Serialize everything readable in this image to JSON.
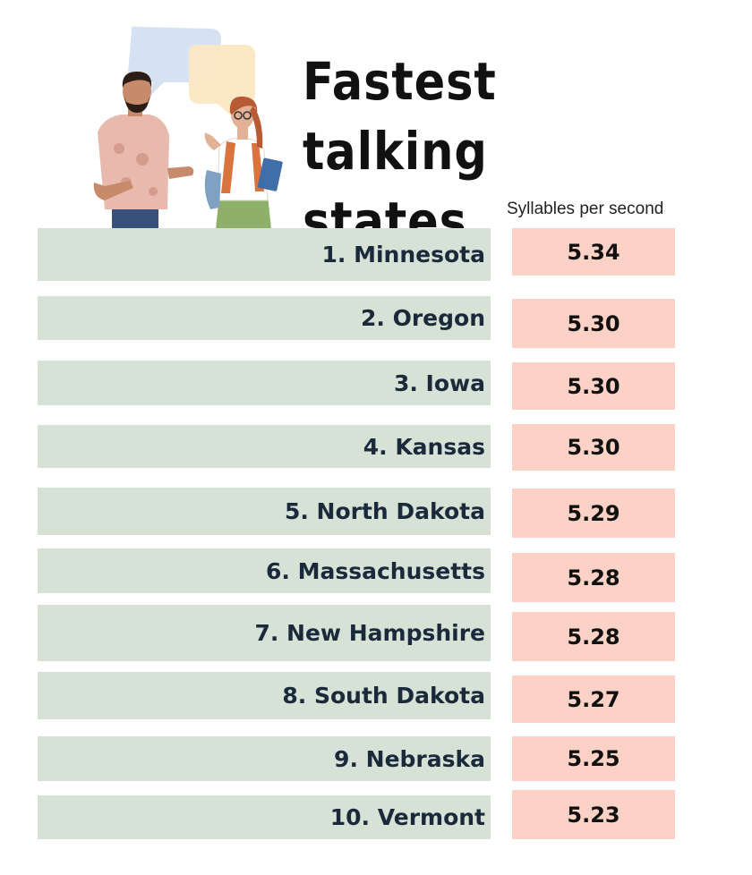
{
  "chart_data": {
    "type": "table",
    "title_line1": "Fastest talking",
    "title_line2": "states",
    "unit_label": "Syllables per second",
    "rows": [
      {
        "rank_label": "1. Minnesota",
        "value": 5.34,
        "value_label": "5.34"
      },
      {
        "rank_label": "2. Oregon",
        "value": 5.3,
        "value_label": "5.30"
      },
      {
        "rank_label": "3. Iowa",
        "value": 5.3,
        "value_label": "5.30"
      },
      {
        "rank_label": "4. Kansas",
        "value": 5.3,
        "value_label": "5.30"
      },
      {
        "rank_label": "5. North Dakota",
        "value": 5.29,
        "value_label": "5.29"
      },
      {
        "rank_label": "6. Massachusetts",
        "value": 5.28,
        "value_label": "5.28"
      },
      {
        "rank_label": "7. New Hampshire",
        "value": 5.28,
        "value_label": "5.28"
      },
      {
        "rank_label": "8. South Dakota",
        "value": 5.27,
        "value_label": "5.27"
      },
      {
        "rank_label": "9. Nebraska",
        "value": 5.25,
        "value_label": "5.25"
      },
      {
        "rank_label": "10. Vermont",
        "value": 5.23,
        "value_label": "5.23"
      }
    ]
  },
  "colors": {
    "state_box": "#d7e2d7",
    "value_box": "#fcd2c6",
    "state_text": "#1b2a3b",
    "title_text": "#111111"
  },
  "illustration": {
    "icons": [
      "speech-bubble-blue-icon",
      "speech-bubble-yellow-icon",
      "man-talking-icon",
      "woman-with-book-icon"
    ]
  }
}
